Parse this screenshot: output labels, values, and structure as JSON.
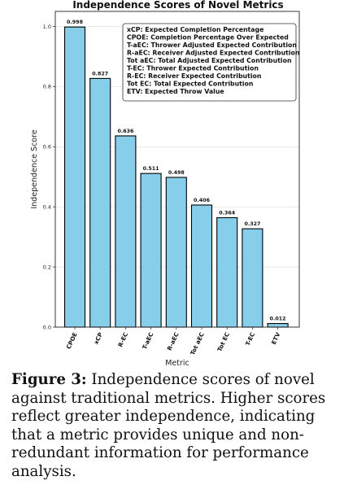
{
  "chart_data": {
    "type": "bar",
    "title": "Independence Scores of Novel Metrics",
    "xlabel": "Metric",
    "ylabel": "Independence Score",
    "categories": [
      "CPOE",
      "xCP",
      "R-EC",
      "T-aEC",
      "R-aEC",
      "Tot aEC",
      "Tot EC",
      "T-EC",
      "ETV"
    ],
    "values": [
      0.998,
      0.827,
      0.636,
      0.511,
      0.498,
      0.406,
      0.364,
      0.327,
      0.012
    ],
    "data_labels": [
      "0.998",
      "0.827",
      "0.636",
      "0.511",
      "0.498",
      "0.406",
      "0.364",
      "0.327",
      "0.012"
    ],
    "yticks": [
      "0.0",
      "0.2",
      "0.4",
      "0.6",
      "0.8",
      "1.0"
    ],
    "ylim": [
      0,
      1.05
    ],
    "grid": true,
    "bar_color": "#87ceeb",
    "bar_edge_color": "#000000",
    "legend_placement": "top-right",
    "legend_entries": [
      "xCP: Expected Completion Percentage",
      "CPOE: Completion Percentage Over Expected",
      "T-aEC: Thrower Adjusted Expected Contribution",
      "R-aEC: Receiver Adjusted Expected Contribution",
      "Tot aEC: Total Adjusted Expected Contribution",
      "T-EC: Thrower Expected Contribution",
      "R-EC: Receiver Expected Contribution",
      "Tot EC: Total  Expected Contribution",
      "ETV: Expected Throw Value"
    ]
  },
  "caption": {
    "label": "Figure 3:",
    "text": " Independence scores of novel against traditional metrics. Higher scores reflect greater independence, indicating that a metric provides unique and non-redundant information for performance analysis."
  }
}
